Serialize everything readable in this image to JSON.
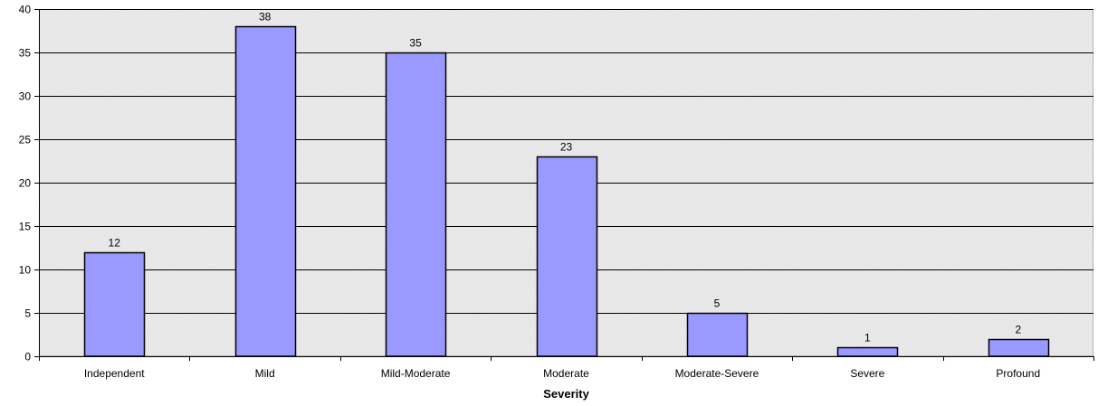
{
  "chart_data": {
    "type": "bar",
    "title": "",
    "xlabel": "Severity",
    "ylabel": "",
    "categories": [
      "Independent",
      "Mild",
      "Mild-Moderate",
      "Moderate",
      "Moderate-Severe",
      "Severe",
      "Profound"
    ],
    "values": [
      12,
      38,
      35,
      23,
      5,
      1,
      2
    ],
    "ylim": [
      0,
      40
    ],
    "yticks": [
      0,
      5,
      10,
      15,
      20,
      25,
      30,
      35,
      40
    ],
    "grid": true,
    "legend": "none",
    "colors": {
      "bar_fill": "#9999ff",
      "bar_stroke": "#000000",
      "plot_background": "#ececec",
      "grid": "#000000"
    }
  }
}
